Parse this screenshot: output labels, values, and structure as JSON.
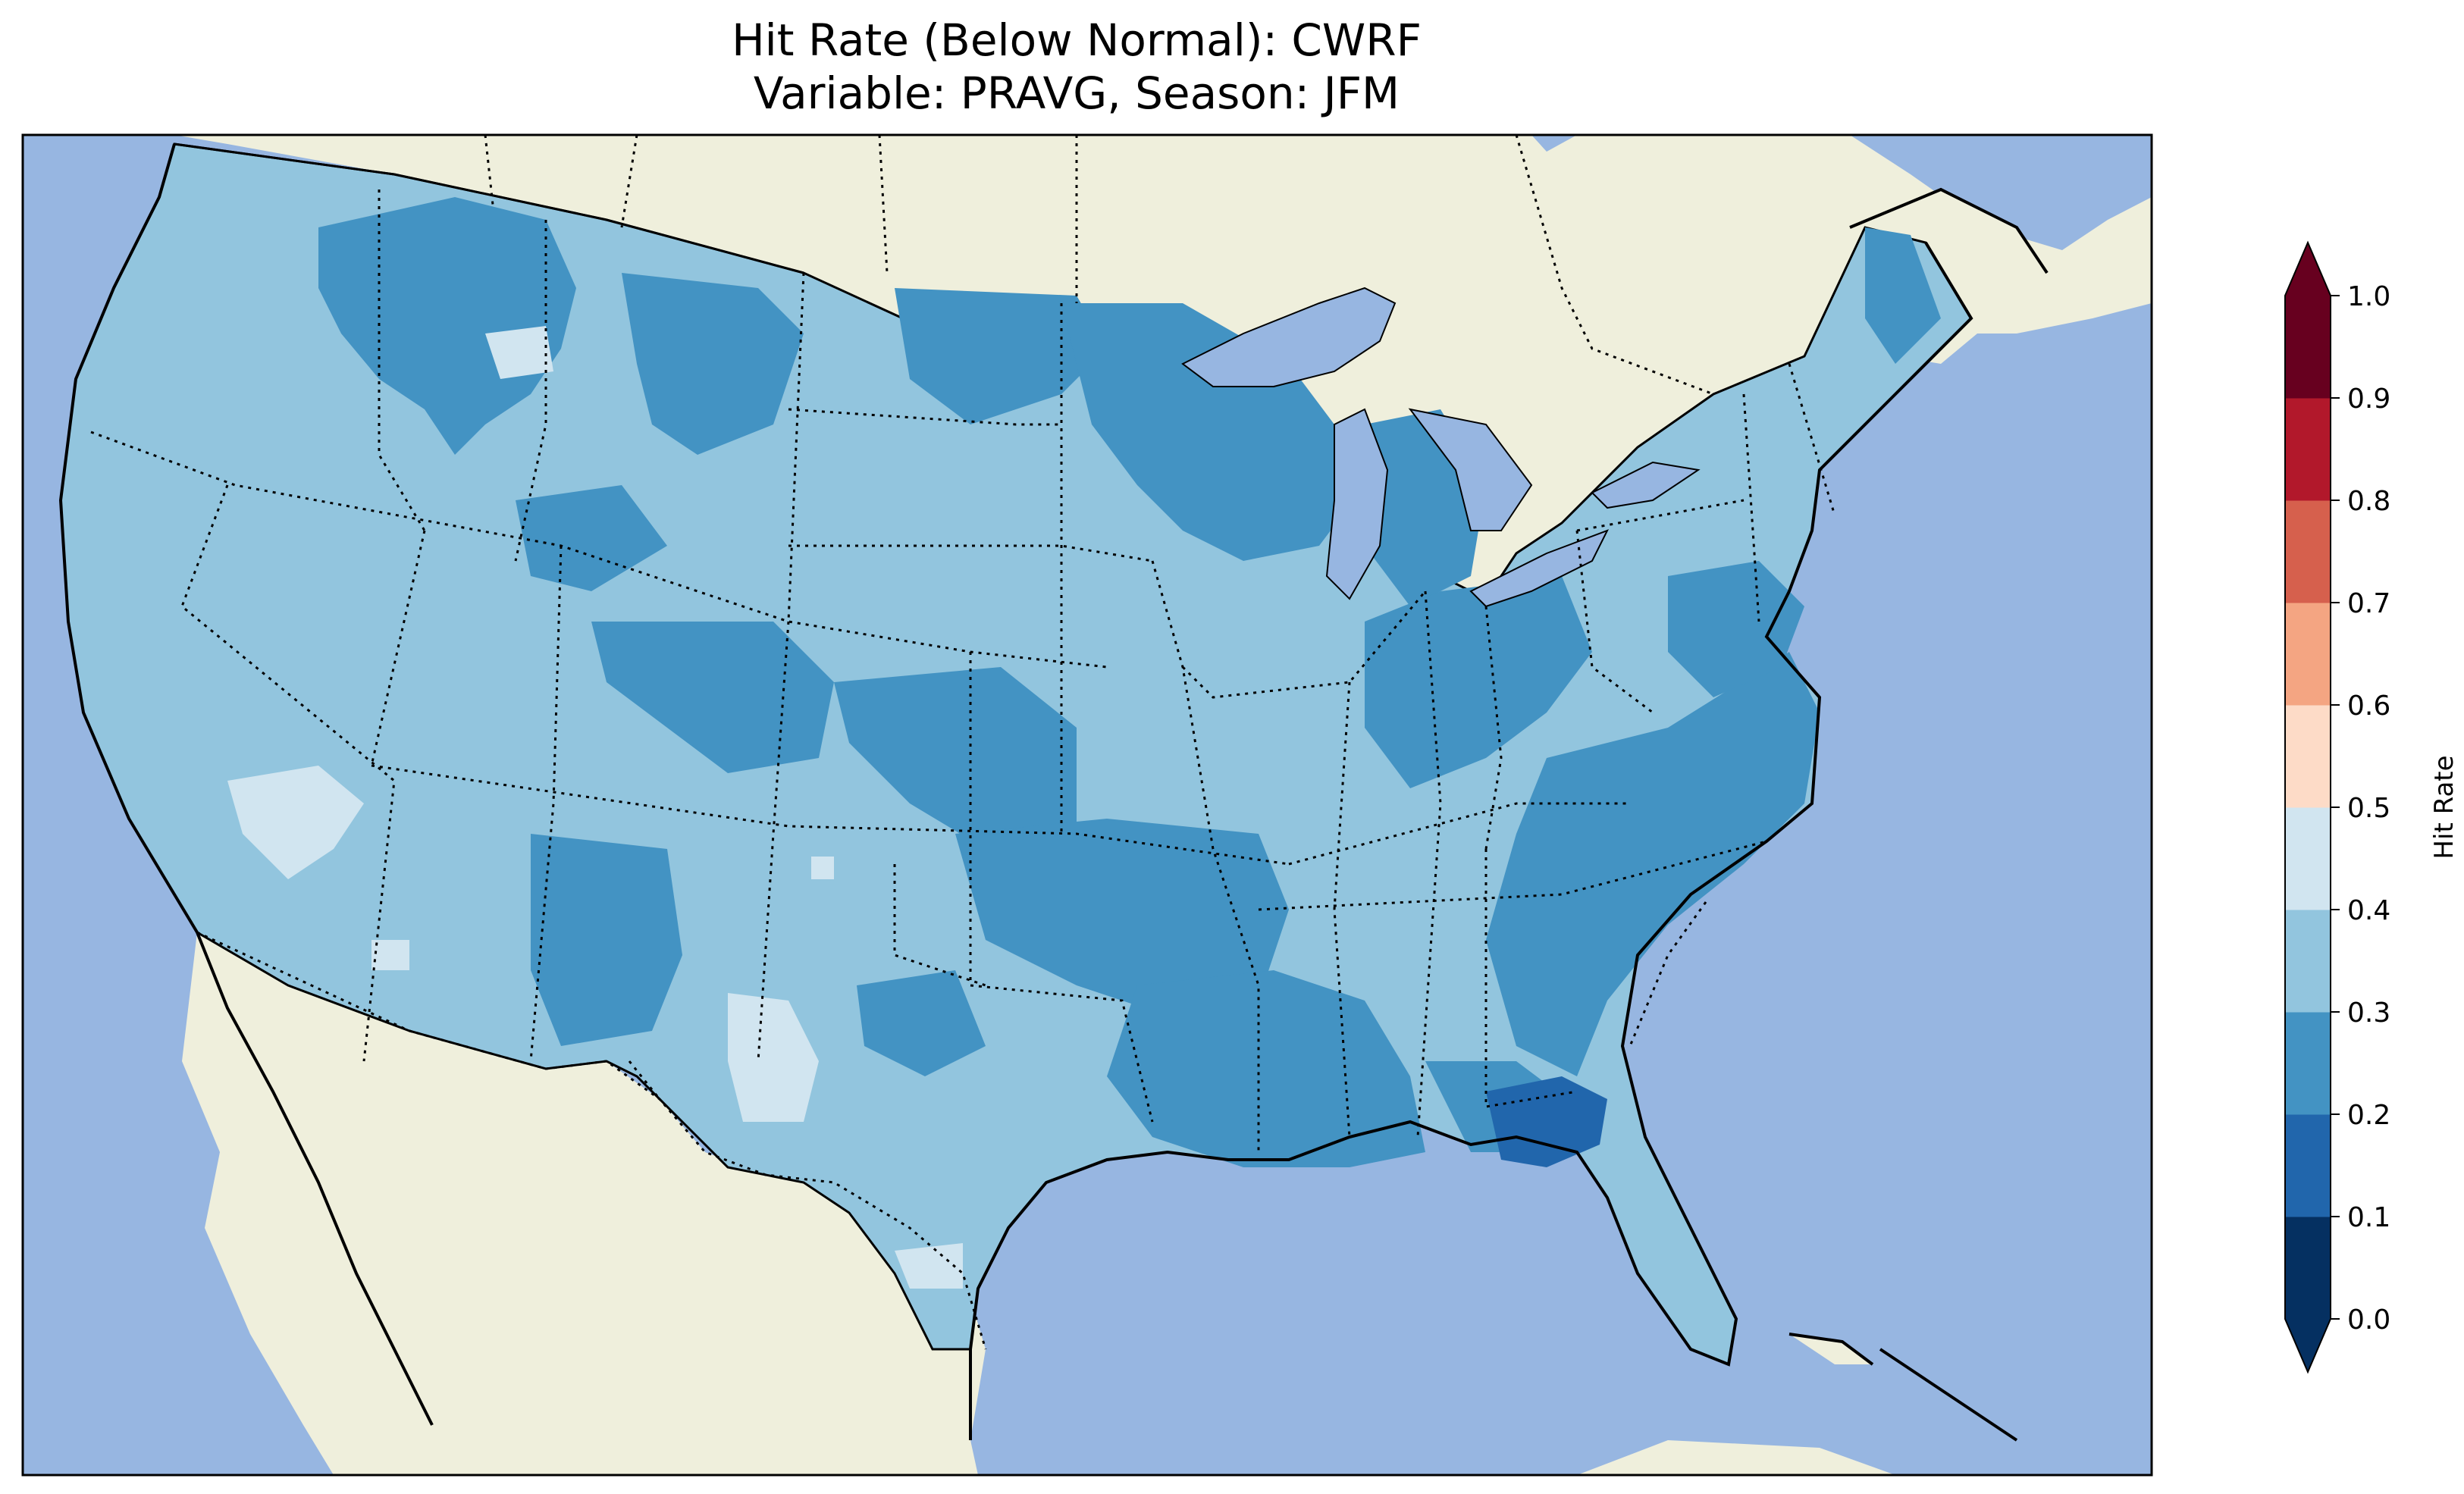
{
  "title_line1": "Hit Rate (Below Normal): CWRF",
  "title_line2": "Variable: PRAVG, Season: JFM",
  "colors": {
    "ocean": "#97b6e1",
    "land": "#efefdc",
    "lakes": "#97b6e1"
  },
  "colorbar": {
    "label": "Hit Rate",
    "ticks": [
      "0.0",
      "0.1",
      "0.2",
      "0.3",
      "0.4",
      "0.5",
      "0.6",
      "0.7",
      "0.8",
      "0.9",
      "1.0"
    ],
    "bins": [
      {
        "range": [
          0.0,
          0.1
        ],
        "color": "#053061"
      },
      {
        "range": [
          0.1,
          0.2
        ],
        "color": "#2166ac"
      },
      {
        "range": [
          0.2,
          0.3
        ],
        "color": "#4393c3"
      },
      {
        "range": [
          0.3,
          0.4
        ],
        "color": "#92c5de"
      },
      {
        "range": [
          0.4,
          0.5
        ],
        "color": "#d1e5f0"
      },
      {
        "range": [
          0.5,
          0.6
        ],
        "color": "#fddbc7"
      },
      {
        "range": [
          0.6,
          0.7
        ],
        "color": "#f4a582"
      },
      {
        "range": [
          0.7,
          0.8
        ],
        "color": "#d6604d"
      },
      {
        "range": [
          0.8,
          0.9
        ],
        "color": "#b2182b"
      },
      {
        "range": [
          0.9,
          1.0
        ],
        "color": "#67001f"
      }
    ],
    "extend_under_color": "#053061",
    "extend_over_color": "#67001f"
  },
  "legend_placement": "right",
  "regions": [
    {
      "name": "pacific-northwest",
      "bin": 0.3
    },
    {
      "name": "northern-rockies",
      "bin": 0.2
    },
    {
      "name": "great-basin",
      "bin": 0.3
    },
    {
      "name": "southwest",
      "bin": 0.3
    },
    {
      "name": "central-plains",
      "bin": 0.3
    },
    {
      "name": "upper-midwest",
      "bin": 0.2
    },
    {
      "name": "southeast",
      "bin": 0.2
    },
    {
      "name": "florida-panhandle",
      "bin": 0.1
    },
    {
      "name": "northeast",
      "bin": 0.3
    }
  ]
}
